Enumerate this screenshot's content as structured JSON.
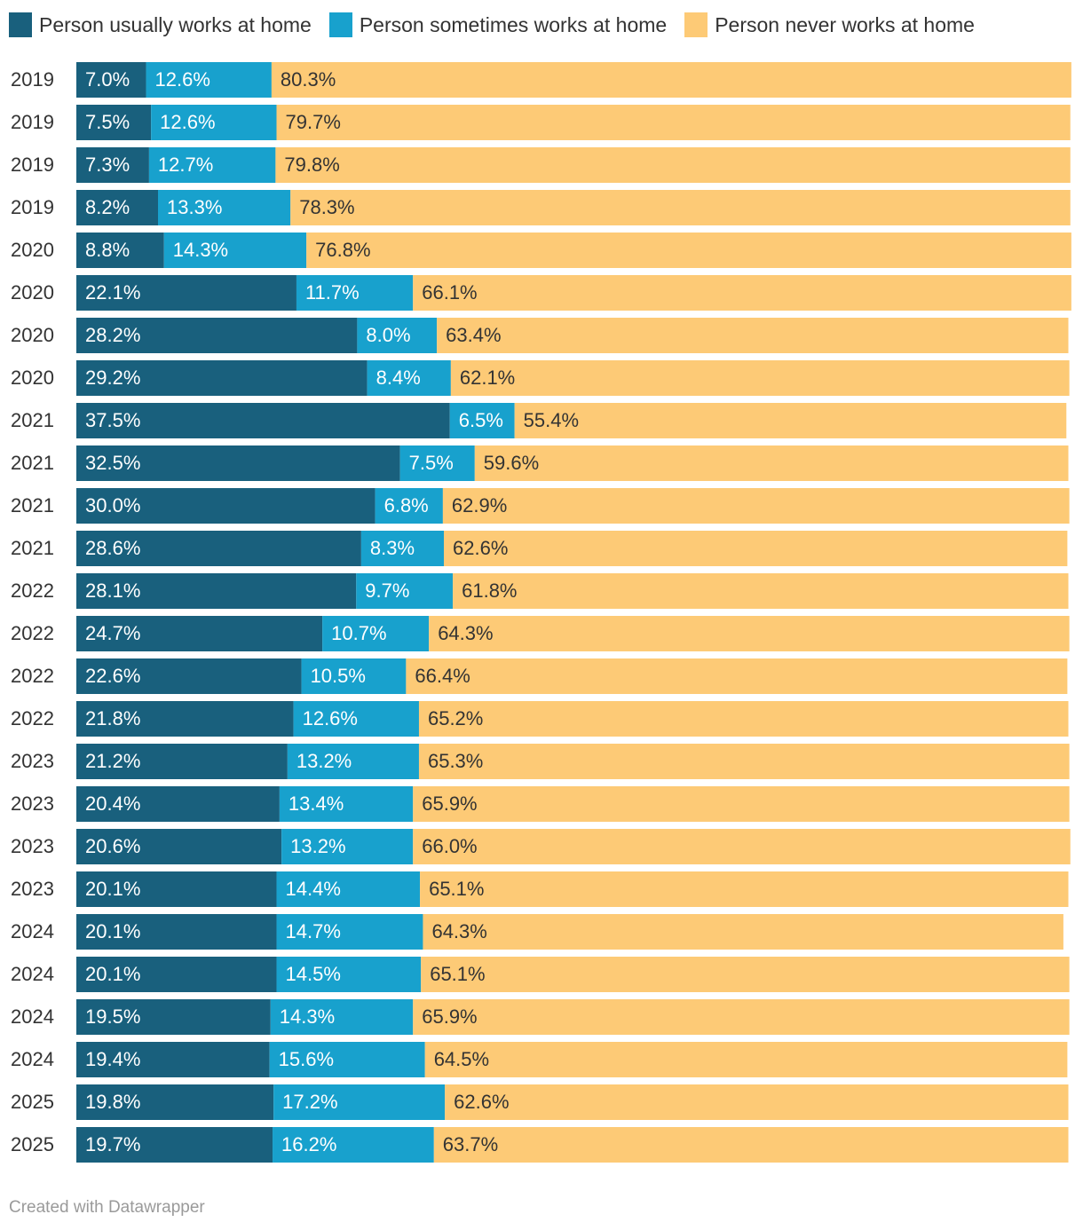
{
  "chart_data": {
    "type": "bar",
    "orientation": "horizontal",
    "stacked": true,
    "legend_position": "top",
    "categories": [
      "2019",
      "2019",
      "2019",
      "2019",
      "2020",
      "2020",
      "2020",
      "2020",
      "2021",
      "2021",
      "2021",
      "2021",
      "2022",
      "2022",
      "2022",
      "2022",
      "2023",
      "2023",
      "2023",
      "2023",
      "2024",
      "2024",
      "2024",
      "2024",
      "2025",
      "2025"
    ],
    "series": [
      {
        "name": "Person usually works at home",
        "color": "#19607d",
        "values": [
          7.0,
          7.5,
          7.3,
          8.2,
          8.8,
          22.1,
          28.2,
          29.2,
          37.5,
          32.5,
          30.0,
          28.6,
          28.1,
          24.7,
          22.6,
          21.8,
          21.2,
          20.4,
          20.6,
          20.1,
          20.1,
          20.1,
          19.5,
          19.4,
          19.8,
          19.7
        ],
        "labels": [
          "7.0%",
          "7.5%",
          "7.3%",
          "8.2%",
          "8.8%",
          "22.1%",
          "28.2%",
          "29.2%",
          "37.5%",
          "32.5%",
          "30.0%",
          "28.6%",
          "28.1%",
          "24.7%",
          "22.6%",
          "21.8%",
          "21.2%",
          "20.4%",
          "20.6%",
          "20.1%",
          "20.1%",
          "20.1%",
          "19.5%",
          "19.4%",
          "19.8%",
          "19.7%"
        ]
      },
      {
        "name": "Person sometimes works at home",
        "color": "#18a1cd",
        "values": [
          12.6,
          12.6,
          12.7,
          13.3,
          14.3,
          11.7,
          8.0,
          8.4,
          6.5,
          7.5,
          6.8,
          8.3,
          9.7,
          10.7,
          10.5,
          12.6,
          13.2,
          13.4,
          13.2,
          14.4,
          14.7,
          14.5,
          14.3,
          15.6,
          17.2,
          16.2
        ],
        "labels": [
          "12.6%",
          "12.6%",
          "12.7%",
          "13.3%",
          "14.3%",
          "11.7%",
          "8.0%",
          "8.4%",
          "6.5%",
          "7.5%",
          "6.8%",
          "8.3%",
          "9.7%",
          "10.7%",
          "10.5%",
          "12.6%",
          "13.2%",
          "13.4%",
          "13.2%",
          "14.4%",
          "14.7%",
          "14.5%",
          "14.3%",
          "15.6%",
          "17.2%",
          "16.2%"
        ]
      },
      {
        "name": "Person never works at home",
        "color": "#fdca76",
        "values": [
          80.3,
          79.7,
          79.8,
          78.3,
          76.8,
          66.1,
          63.4,
          62.1,
          55.4,
          59.6,
          62.9,
          62.6,
          61.8,
          64.3,
          66.4,
          65.2,
          65.3,
          65.9,
          66.0,
          65.1,
          64.3,
          65.1,
          65.9,
          64.5,
          62.6,
          63.7
        ],
        "labels": [
          "80.3%",
          "79.7%",
          "79.8%",
          "78.3%",
          "76.8%",
          "66.1%",
          "63.4%",
          "62.1%",
          "55.4%",
          "59.6%",
          "62.9%",
          "62.6%",
          "61.8%",
          "64.3%",
          "66.4%",
          "65.2%",
          "65.3%",
          "65.9%",
          "66.0%",
          "65.1%",
          "64.3%",
          "65.1%",
          "65.9%",
          "64.5%",
          "62.6%",
          "63.7%"
        ]
      }
    ],
    "xlim": [
      0,
      100
    ]
  },
  "footer": "Created with Datawrapper"
}
